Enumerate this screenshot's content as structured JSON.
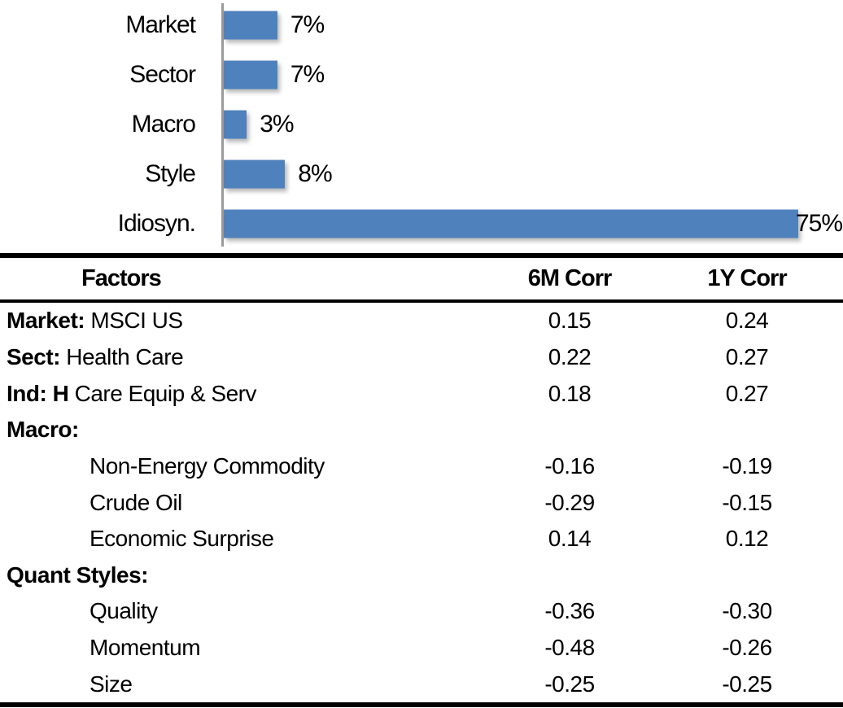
{
  "colors": {
    "bar_blue": "#4F81BD",
    "axis_gray": "#9B9B9B",
    "text_black": "#000000",
    "rule_black": "#000000"
  },
  "chart_data": [
    {
      "type": "bar",
      "orientation": "horizontal",
      "title": "",
      "xlabel": "",
      "ylabel": "",
      "categories": [
        "Market",
        "Sector",
        "Macro",
        "Style",
        "Idiosyn."
      ],
      "values": [
        7,
        7,
        3,
        8,
        75
      ],
      "data_labels": [
        "7%",
        "7%",
        "3%",
        "8%",
        "75%"
      ],
      "unit": "percent",
      "xlim": [
        0,
        80
      ],
      "grid": false,
      "legend": false,
      "bar_color": "#4F81BD"
    },
    {
      "type": "table",
      "columns": [
        "Factors",
        "6M Corr",
        "1Y Corr"
      ],
      "rows": [
        {
          "label_bold": "Market:",
          "label_rest": " MSCI US",
          "indent": false,
          "values": [
            "0.15",
            "0.24"
          ]
        },
        {
          "label_bold": "Sect:",
          "label_rest": " Health Care",
          "indent": false,
          "values": [
            "0.22",
            "0.27"
          ]
        },
        {
          "label_bold": "Ind: H",
          "label_rest": " Care Equip & Serv",
          "indent": false,
          "values": [
            "0.18",
            "0.27"
          ]
        },
        {
          "label_bold": "Macro:",
          "label_rest": "",
          "indent": false,
          "values": [
            "",
            ""
          ]
        },
        {
          "label_bold": "",
          "label_rest": "Non-Energy Commodity",
          "indent": true,
          "values": [
            "-0.16",
            "-0.19"
          ]
        },
        {
          "label_bold": "",
          "label_rest": "Crude Oil",
          "indent": true,
          "values": [
            "-0.29",
            "-0.15"
          ]
        },
        {
          "label_bold": "",
          "label_rest": "Economic Surprise",
          "indent": true,
          "values": [
            "0.14",
            "0.12"
          ]
        },
        {
          "label_bold": "Quant Styles:",
          "label_rest": "",
          "indent": false,
          "values": [
            "",
            ""
          ]
        },
        {
          "label_bold": "",
          "label_rest": "Quality",
          "indent": true,
          "values": [
            "-0.36",
            "-0.30"
          ]
        },
        {
          "label_bold": "",
          "label_rest": "Momentum",
          "indent": true,
          "values": [
            "-0.48",
            "-0.26"
          ]
        },
        {
          "label_bold": "",
          "label_rest": "Size",
          "indent": true,
          "values": [
            "-0.25",
            "-0.25"
          ]
        }
      ]
    }
  ]
}
